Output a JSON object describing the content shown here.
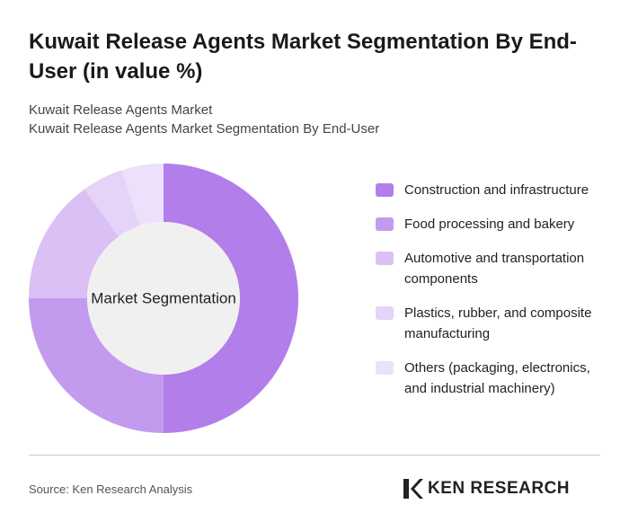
{
  "chart_data": {
    "type": "donut",
    "title": "Kuwait Release Agents Market Segmentation By End-User (in value %)",
    "subtitle": [
      "Kuwait Release Agents Market",
      "Kuwait Release Agents Market Segmentation By End-User"
    ],
    "center_label": "Market Segmentation",
    "categories": [
      "Construction and infrastructure",
      "Food processing and bakery",
      "Automotive and transportation components",
      "Plastics, rubber, and composite manufacturing",
      "Others (packaging, electronics, and industrial machinery)"
    ],
    "values": [
      50,
      25,
      15,
      5,
      5
    ],
    "colors": [
      "#b27ee9",
      "#c39bee",
      "#dac0f5",
      "#e5d3f8",
      "#ece0fa"
    ],
    "legend": "right"
  },
  "footer": {
    "source": "Source: Ken Research Analysis",
    "brand": "KEN RESEARCH"
  }
}
